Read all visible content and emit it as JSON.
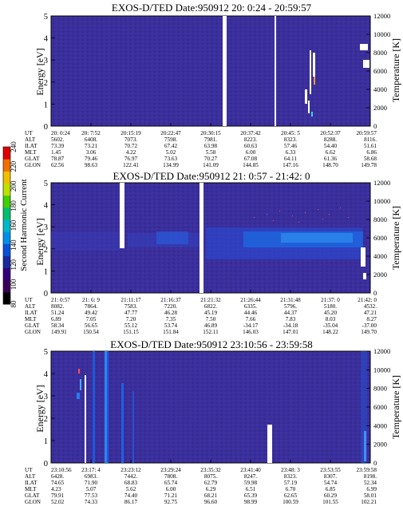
{
  "panels": [
    {
      "title": "EXOS-D/TED  Date:950912  20: 0:24 - 20:59:57",
      "ylabel_left": "Energy [eV]",
      "ylabel_right": "Temperature [K]",
      "rows": [
        {
          "label": "UT",
          "values": [
            "20: 0:24",
            "20: 7:52",
            "20:15:19",
            "20:22:47",
            "20:30:15",
            "20:37:42",
            "20:45: 5",
            "20:52:37",
            "20:59:57"
          ]
        },
        {
          "label": "ALT",
          "values": [
            "5602.",
            "6408.",
            "7073.",
            "7598.",
            "7981.",
            "8223.",
            "8323.",
            "8288.",
            "8116."
          ]
        },
        {
          "label": "ILAT",
          "values": [
            "73.39",
            "73.21",
            "70.72",
            "67.42",
            "63.98",
            "60.63",
            "57.46",
            "54.40",
            "51.61"
          ]
        },
        {
          "label": "MLT",
          "values": [
            "1.45",
            "3.06",
            "4.22",
            "5.02",
            "5.58",
            "6.00",
            "6.33",
            "6.62",
            "6.86"
          ]
        },
        {
          "label": "GLAT",
          "values": [
            "78.87",
            "79.46",
            "76.97",
            "73.63",
            "70.27",
            "67.08",
            "64.11",
            "61.36",
            "58.68"
          ]
        },
        {
          "label": "GLON",
          "values": [
            "62.56",
            "98.63",
            "122.41",
            "134.99",
            "141.09",
            "144.85",
            "147.16",
            "148.70",
            "149.78"
          ]
        }
      ]
    },
    {
      "title": "EXOS-D/TED   Date:950912  21: 0:57 - 21:42: 0",
      "ylabel_left": "Energy [eV]",
      "ylabel_right": "Temperature [K]",
      "rows": [
        {
          "label": "UT",
          "values": [
            "21: 0:57",
            "21: 6: 9",
            "21:11:17",
            "21:16:37",
            "21:21:32",
            "21:26:44",
            "21:31:48",
            "21:37: 0",
            "21:42: 0"
          ]
        },
        {
          "label": "ALT",
          "values": [
            "8082.",
            "7864.",
            "7583.",
            "7220.",
            "6822.",
            "6335.",
            "5796.",
            "5180.",
            "4532."
          ]
        },
        {
          "label": "ILAT",
          "values": [
            "51.24",
            "49.42",
            "47.77",
            "46.28",
            "45.19",
            "44.46",
            "44.37",
            "45.20",
            "47.21"
          ]
        },
        {
          "label": "MLT",
          "values": [
            "6.89",
            "7.05",
            "7.20",
            "7.35",
            "7.50",
            "7.66",
            "7.83",
            "8.03",
            "8.27"
          ]
        },
        {
          "label": "GLAT",
          "values": [
            "58.34",
            "56.65",
            "55.12",
            "53.74",
            "46.89",
            "-34.17",
            "-34.18",
            "-35.04",
            "-37.00"
          ]
        },
        {
          "label": "GLON",
          "values": [
            "149.91",
            "150.54",
            "151.15",
            "151.84",
            "152.11",
            "146.03",
            "147.01",
            "148.22",
            "149.70"
          ]
        }
      ]
    },
    {
      "title": "EXOS-D/TED  Date:950912  23:10:56 - 23:59:58",
      "ylabel_left": "Energy [eV]",
      "ylabel_right": "Temperature [K]",
      "rows": [
        {
          "label": "UT",
          "values": [
            "23:10:56",
            "23:17: 4",
            "23:23:12",
            "23:29:24",
            "23:35:32",
            "23:41:40",
            "23:48: 3",
            "23:53:55",
            "23:59:58"
          ]
        },
        {
          "label": "ALT",
          "values": [
            "6428.",
            "6983.",
            "7442.",
            "7808.",
            "8075.",
            "8247.",
            "8323.",
            "8307.",
            "8198."
          ]
        },
        {
          "label": "ILAT",
          "values": [
            "74.65",
            "71.90",
            "68.83",
            "65.74",
            "62.79",
            "59.98",
            "57.19",
            "54.74",
            "52.34"
          ]
        },
        {
          "label": "MLT",
          "values": [
            "4.23",
            "5.07",
            "5.62",
            "6.00",
            "6.29",
            "6.51",
            "6.70",
            "6.85",
            "6.99"
          ]
        },
        {
          "label": "GLAT",
          "values": [
            "79.91",
            "77.53",
            "74.40",
            "71.21",
            "68.21",
            "65.39",
            "62.65",
            "60.29",
            "58.01"
          ]
        },
        {
          "label": "GLON",
          "values": [
            "52.02",
            "74.33",
            "86.17",
            "92.75",
            "96.60",
            "98.99",
            "100.59",
            "101.55",
            "102.21"
          ]
        }
      ]
    }
  ],
  "colorbar": {
    "label": "Second Harmonic Current",
    "ticks": [
      "80",
      "100",
      "120",
      "140",
      "160",
      "180",
      "200",
      "220",
      "240"
    ],
    "colors": [
      "#000000",
      "#3a0058",
      "#32007a",
      "#1a2a9c",
      "#0a50d8",
      "#0090e8",
      "#00b8c8",
      "#00c070",
      "#40d000",
      "#c0e000",
      "#f0c000",
      "#f07000",
      "#e00000"
    ]
  },
  "chart_data": [
    {
      "type": "heatmap",
      "title": "EXOS-D/TED  Date:950912  20: 0:24 - 20:59:57",
      "ylabel": "Energy [eV]",
      "y2label": "Temperature [K]",
      "ylim": [
        0,
        5
      ],
      "y2lim": [
        0,
        12000
      ],
      "yticks": [
        0,
        1,
        2,
        3,
        4,
        5
      ],
      "y2ticks": [
        0,
        2000,
        4000,
        6000,
        8000,
        10000,
        12000
      ],
      "x": [
        "20: 0:24",
        "20: 7:52",
        "20:15:19",
        "20:22:47",
        "20:30:15",
        "20:37:42",
        "20:45: 5",
        "20:52:37",
        "20:59:57"
      ],
      "background_color": "#3a2e9a"
    },
    {
      "type": "heatmap",
      "title": "EXOS-D/TED   Date:950912  21: 0:57 - 21:42: 0",
      "ylabel": "Energy [eV]",
      "y2label": "Temperature [K]",
      "ylim": [
        0,
        5
      ],
      "y2lim": [
        0,
        12000
      ],
      "yticks": [
        0,
        1,
        2,
        3,
        4,
        5
      ],
      "y2ticks": [
        0,
        2000,
        4000,
        6000,
        8000,
        10000,
        12000
      ],
      "x": [
        "21: 0:57",
        "21: 6: 9",
        "21:11:17",
        "21:16:37",
        "21:21:32",
        "21:26:44",
        "21:31:48",
        "21:37: 0",
        "21:42: 0"
      ],
      "background_color": "#3a2e9a",
      "enhanced_band_energy_ev": [
        1.5,
        2.6
      ]
    },
    {
      "type": "heatmap",
      "title": "EXOS-D/TED  Date:950912  23:10:56 - 23:59:58",
      "ylabel": "Energy [eV]",
      "y2label": "Temperature [K]",
      "ylim": [
        0,
        5
      ],
      "y2lim": [
        0,
        12000
      ],
      "yticks": [
        0,
        1,
        2,
        3,
        4,
        5
      ],
      "y2ticks": [
        0,
        2000,
        4000,
        6000,
        8000,
        10000,
        12000
      ],
      "x": [
        "23:10:56",
        "23:17: 4",
        "23:23:12",
        "23:29:24",
        "23:35:32",
        "23:41:40",
        "23:48: 3",
        "23:53:55",
        "23:59:58"
      ],
      "background_color": "#3a2e9a"
    }
  ]
}
